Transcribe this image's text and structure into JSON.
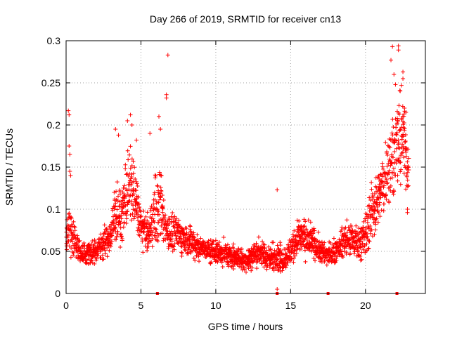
{
  "chart_data": {
    "type": "scatter",
    "title": "Day 266 of 2019, SRMTID for receiver cn13",
    "xlabel": "GPS time / hours",
    "ylabel": "SRMTID / TECUs",
    "xlim": [
      0,
      24
    ],
    "ylim": [
      0,
      0.3
    ],
    "x_ticks": [
      0,
      5,
      10,
      15,
      20
    ],
    "y_ticks": [
      0,
      0.05,
      0.1,
      0.15,
      0.2,
      0.25,
      0.3
    ],
    "x_tick_labels": [
      "0",
      "5",
      "10",
      "15",
      "20"
    ],
    "y_tick_labels": [
      "0",
      "0.05",
      "0.1",
      "0.15",
      "0.2",
      "0.25",
      "0.3"
    ],
    "grid": true,
    "marker": "plus",
    "marker_color": "#ff0000",
    "series": [
      {
        "name": "SRMTID",
        "envelope_x": [
          0,
          0.2,
          0.5,
          1,
          1.5,
          2,
          2.5,
          3,
          3.3,
          3.7,
          4,
          4.3,
          4.7,
          5,
          5.5,
          6,
          6.3,
          6.6,
          7,
          7.5,
          8,
          8.5,
          9,
          9.5,
          10,
          11,
          12,
          13,
          13.5,
          14,
          14.5,
          15,
          15.5,
          16,
          16.5,
          17,
          17.5,
          18,
          18.5,
          19,
          19.5,
          20,
          20.5,
          21,
          21.5,
          22,
          22.5,
          22.9
        ],
        "envelope_y": [
          0.06,
          0.08,
          0.07,
          0.045,
          0.05,
          0.05,
          0.06,
          0.07,
          0.1,
          0.09,
          0.12,
          0.13,
          0.11,
          0.08,
          0.07,
          0.1,
          0.11,
          0.08,
          0.07,
          0.07,
          0.065,
          0.06,
          0.055,
          0.05,
          0.05,
          0.045,
          0.04,
          0.05,
          0.04,
          0.045,
          0.04,
          0.05,
          0.07,
          0.065,
          0.06,
          0.05,
          0.045,
          0.05,
          0.06,
          0.065,
          0.06,
          0.07,
          0.1,
          0.12,
          0.15,
          0.17,
          0.19,
          0.14
        ],
        "spread_y": [
          0.03,
          0.05,
          0.03,
          0.02,
          0.02,
          0.02,
          0.025,
          0.03,
          0.06,
          0.04,
          0.06,
          0.06,
          0.05,
          0.03,
          0.03,
          0.07,
          0.06,
          0.04,
          0.03,
          0.03,
          0.025,
          0.025,
          0.02,
          0.02,
          0.02,
          0.02,
          0.02,
          0.025,
          0.02,
          0.025,
          0.02,
          0.025,
          0.03,
          0.03,
          0.025,
          0.02,
          0.02,
          0.02,
          0.025,
          0.03,
          0.03,
          0.04,
          0.05,
          0.05,
          0.07,
          0.07,
          0.07,
          0.04
        ],
        "outliers": [
          [
            0.15,
            0.217
          ],
          [
            0.2,
            0.212
          ],
          [
            0.2,
            0.175
          ],
          [
            0.25,
            0.165
          ],
          [
            0.25,
            0.145
          ],
          [
            0.3,
            0.14
          ],
          [
            3.3,
            0.195
          ],
          [
            3.5,
            0.188
          ],
          [
            4.1,
            0.205
          ],
          [
            4.3,
            0.212
          ],
          [
            4.4,
            0.2
          ],
          [
            4.7,
            0.182
          ],
          [
            5.6,
            0.19
          ],
          [
            6.2,
            0.21
          ],
          [
            6.3,
            0.195
          ],
          [
            6.8,
            0.283
          ],
          [
            6.7,
            0.236
          ],
          [
            6.7,
            0.232
          ],
          [
            14.1,
            0.123
          ],
          [
            14.1,
            0.005
          ],
          [
            21.7,
            0.277
          ],
          [
            21.8,
            0.293
          ],
          [
            21.9,
            0.26
          ],
          [
            22.0,
            0.248
          ],
          [
            22.2,
            0.289
          ],
          [
            22.2,
            0.294
          ],
          [
            22.4,
            0.247
          ],
          [
            22.5,
            0.263
          ],
          [
            22.5,
            0.255
          ],
          [
            22.6,
            0.22
          ],
          [
            22.7,
            0.215
          ],
          [
            22.8,
            0.1
          ],
          [
            22.8,
            0.096
          ]
        ],
        "baseline_markers_x": [
          6.1,
          14.1,
          17.5,
          22.1
        ]
      }
    ]
  }
}
